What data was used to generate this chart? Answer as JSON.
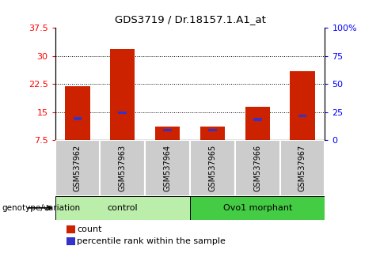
{
  "title": "GDS3719 / Dr.18157.1.A1_at",
  "categories": [
    "GSM537962",
    "GSM537963",
    "GSM537964",
    "GSM537965",
    "GSM537966",
    "GSM537967"
  ],
  "count_values": [
    22.0,
    31.8,
    11.0,
    11.0,
    16.5,
    26.0
  ],
  "percentile_values": [
    13.2,
    14.8,
    10.2,
    10.2,
    13.0,
    14.0
  ],
  "ymin": 7.5,
  "ymax": 37.5,
  "yticks_left": [
    7.5,
    15.0,
    22.5,
    30.0,
    37.5
  ],
  "ytick_labels_left": [
    "7.5",
    "15",
    "22.5",
    "30",
    "37.5"
  ],
  "yticks_right": [
    0,
    25,
    50,
    75,
    100
  ],
  "ytick_labels_right": [
    "0",
    "25",
    "50",
    "75",
    "100%"
  ],
  "bar_color": "#cc2200",
  "percentile_color": "#3333cc",
  "bar_width": 0.55,
  "groups": [
    {
      "label": "control",
      "span": [
        0,
        3
      ],
      "color": "#bbeeaa"
    },
    {
      "label": "Ovo1 morphant",
      "span": [
        3,
        6
      ],
      "color": "#44cc44"
    }
  ],
  "group_label": "genotype/variation",
  "legend_count_label": "count",
  "legend_percentile_label": "percentile rank within the sample",
  "sample_bg": "#cccccc",
  "plot_bg": "#ffffff"
}
